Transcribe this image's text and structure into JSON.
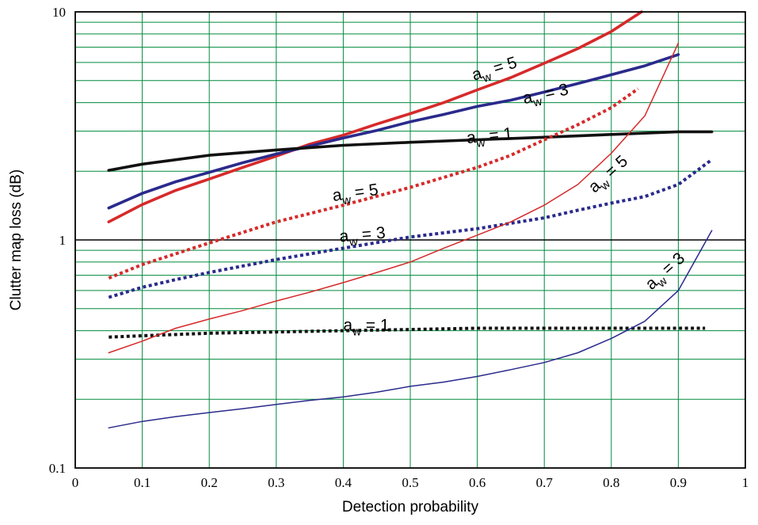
{
  "chart_data": {
    "type": "line",
    "title": "",
    "xlabel": "Detection probability",
    "ylabel": "Clutter map loss (dB)",
    "x_range": [
      0,
      1
    ],
    "y_range": [
      0.1,
      10
    ],
    "y_scale": "log",
    "grid": true,
    "grid_color": "#008a3e",
    "x_ticks": [
      {
        "value": 0,
        "label": "0"
      },
      {
        "value": 0.1,
        "label": "0.1"
      },
      {
        "value": 0.2,
        "label": "0.2"
      },
      {
        "value": 0.3,
        "label": "0.3"
      },
      {
        "value": 0.4,
        "label": "0.4"
      },
      {
        "value": 0.5,
        "label": "0.5"
      },
      {
        "value": 0.6,
        "label": "0.6"
      },
      {
        "value": 0.7,
        "label": "0.7"
      },
      {
        "value": 0.8,
        "label": "0.8"
      },
      {
        "value": 0.9,
        "label": "0.9"
      },
      {
        "value": 1,
        "label": "1"
      }
    ],
    "y_ticks": [
      {
        "value": 0.1,
        "label": "0.1"
      },
      {
        "value": 1,
        "label": "1"
      },
      {
        "value": 10,
        "label": "10"
      }
    ],
    "reference_line": {
      "y": 1,
      "color": "#000000"
    },
    "series": [
      {
        "color": "#d62a2a",
        "style": "thick",
        "x": [
          0.05,
          0.1,
          0.15,
          0.2,
          0.25,
          0.3,
          0.35,
          0.4,
          0.45,
          0.5,
          0.55,
          0.6,
          0.65,
          0.7,
          0.75,
          0.8,
          0.845
        ],
        "y": [
          1.2,
          1.43,
          1.65,
          1.85,
          2.08,
          2.33,
          2.63,
          2.88,
          3.22,
          3.58,
          4.0,
          4.55,
          5.15,
          5.95,
          6.9,
          8.2,
          10.0
        ]
      },
      {
        "color": "#2a2a8c",
        "style": "thick",
        "x": [
          0.05,
          0.1,
          0.15,
          0.2,
          0.25,
          0.3,
          0.35,
          0.4,
          0.45,
          0.5,
          0.55,
          0.6,
          0.65,
          0.7,
          0.75,
          0.8,
          0.85,
          0.9
        ],
        "y": [
          1.38,
          1.6,
          1.8,
          1.98,
          2.18,
          2.38,
          2.58,
          2.8,
          3.02,
          3.3,
          3.55,
          3.85,
          4.1,
          4.45,
          4.85,
          5.3,
          5.8,
          6.5
        ]
      },
      {
        "color": "#111111",
        "style": "thick",
        "x": [
          0.05,
          0.1,
          0.2,
          0.3,
          0.4,
          0.5,
          0.6,
          0.7,
          0.8,
          0.9,
          0.95
        ],
        "y": [
          2.02,
          2.15,
          2.35,
          2.48,
          2.6,
          2.68,
          2.75,
          2.82,
          2.9,
          2.98,
          2.98
        ]
      },
      {
        "color": "#d62a2a",
        "style": "dotted",
        "x": [
          0.05,
          0.1,
          0.2,
          0.3,
          0.4,
          0.5,
          0.6,
          0.65,
          0.7,
          0.75,
          0.8,
          0.84
        ],
        "y": [
          0.68,
          0.78,
          0.97,
          1.2,
          1.42,
          1.7,
          2.08,
          2.35,
          2.75,
          3.2,
          3.8,
          4.6
        ]
      },
      {
        "color": "#2a2a8c",
        "style": "dotted",
        "x": [
          0.05,
          0.1,
          0.15,
          0.2,
          0.3,
          0.4,
          0.5,
          0.6,
          0.7,
          0.75,
          0.8,
          0.85,
          0.9,
          0.95
        ],
        "y": [
          0.56,
          0.62,
          0.67,
          0.72,
          0.82,
          0.92,
          1.03,
          1.12,
          1.25,
          1.35,
          1.45,
          1.55,
          1.75,
          2.25
        ]
      },
      {
        "color": "#111111",
        "style": "dotted",
        "x": [
          0.05,
          0.1,
          0.2,
          0.3,
          0.4,
          0.5,
          0.6,
          0.7,
          0.8,
          0.9,
          0.94
        ],
        "y": [
          0.375,
          0.38,
          0.39,
          0.395,
          0.4,
          0.405,
          0.41,
          0.41,
          0.41,
          0.41,
          0.41
        ]
      },
      {
        "color": "#d62a2a",
        "style": "thin",
        "x": [
          0.05,
          0.1,
          0.15,
          0.2,
          0.25,
          0.3,
          0.35,
          0.4,
          0.45,
          0.5,
          0.55,
          0.6,
          0.65,
          0.7,
          0.75,
          0.8,
          0.85,
          0.9
        ],
        "y": [
          0.32,
          0.36,
          0.41,
          0.45,
          0.49,
          0.54,
          0.59,
          0.65,
          0.72,
          0.8,
          0.92,
          1.05,
          1.2,
          1.42,
          1.75,
          2.4,
          3.5,
          7.3
        ]
      },
      {
        "color": "#2a2a8c",
        "style": "thin",
        "x": [
          0.05,
          0.1,
          0.15,
          0.2,
          0.25,
          0.3,
          0.35,
          0.4,
          0.45,
          0.5,
          0.55,
          0.6,
          0.65,
          0.7,
          0.75,
          0.8,
          0.85,
          0.9,
          0.95
        ],
        "y": [
          0.15,
          0.16,
          0.168,
          0.175,
          0.182,
          0.19,
          0.198,
          0.205,
          0.215,
          0.228,
          0.238,
          0.252,
          0.27,
          0.29,
          0.32,
          0.37,
          0.44,
          0.6,
          1.1
        ]
      }
    ],
    "annotations": [
      {
        "text": "a",
        "sub": "w",
        "rest": " = 5",
        "x": 0.595,
        "y": 5.0,
        "angle": -17
      },
      {
        "text": "a",
        "sub": "w",
        "rest": " = 3",
        "x": 0.67,
        "y": 3.95,
        "angle": -12
      },
      {
        "text": "a",
        "sub": "w",
        "rest": " = 1",
        "x": 0.585,
        "y": 2.65,
        "angle": -6
      },
      {
        "text": "a",
        "sub": "w",
        "rest": " = 5",
        "x": 0.385,
        "y": 1.48,
        "angle": -8
      },
      {
        "text": "a",
        "sub": "w",
        "rest": " = 5",
        "x": 0.775,
        "y": 1.6,
        "angle": -42
      },
      {
        "text": "a",
        "sub": "w",
        "rest": " = 3",
        "x": 0.395,
        "y": 0.98,
        "angle": -5
      },
      {
        "text": "a",
        "sub": "w",
        "rest": " = 3",
        "x": 0.86,
        "y": 0.6,
        "angle": -42
      },
      {
        "text": "a",
        "sub": "w",
        "rest": " = 1",
        "x": 0.4,
        "y": 0.4,
        "angle": 0
      }
    ]
  }
}
